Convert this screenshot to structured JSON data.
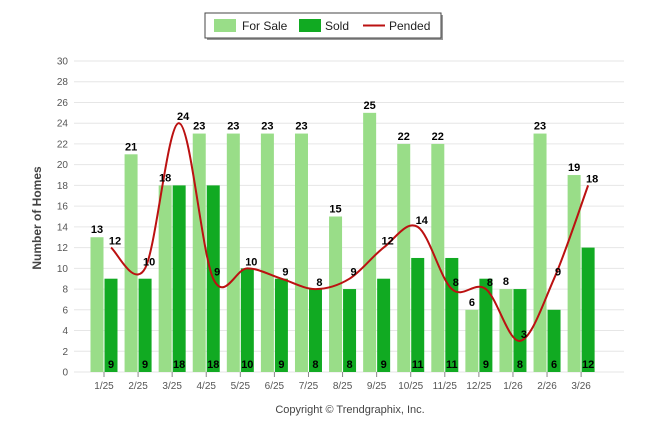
{
  "copyright": "Copyright © Trendgraphix, Inc.",
  "chart_data": {
    "type": "bar",
    "title": "",
    "xlabel": "",
    "ylabel": "Number of Homes",
    "ylim": [
      0,
      30
    ],
    "yticks": [
      0,
      2,
      4,
      6,
      8,
      10,
      12,
      14,
      16,
      18,
      20,
      22,
      24,
      26,
      28,
      30
    ],
    "grid": true,
    "legend_position": "top-center",
    "categories": [
      "1/25",
      "2/25",
      "3/25",
      "4/25",
      "5/25",
      "6/25",
      "7/25",
      "8/25",
      "9/25",
      "10/25",
      "11/25",
      "12/25",
      "1/26",
      "2/26",
      "3/26"
    ],
    "series": [
      {
        "name": "For Sale",
        "type": "bar",
        "color": "#99dd88",
        "values": [
          13,
          21,
          18,
          23,
          23,
          23,
          23,
          15,
          25,
          22,
          22,
          6,
          8,
          23,
          19
        ]
      },
      {
        "name": "Sold",
        "type": "bar",
        "color": "#11aa22",
        "values": [
          9,
          9,
          18,
          18,
          10,
          9,
          8,
          8,
          9,
          11,
          11,
          9,
          8,
          6,
          12
        ]
      },
      {
        "name": "Pended",
        "type": "line",
        "color": "#bb1111",
        "values": [
          12,
          10,
          24,
          9,
          10,
          9,
          8,
          9,
          12,
          14,
          8,
          8,
          3,
          9,
          18
        ]
      }
    ]
  }
}
